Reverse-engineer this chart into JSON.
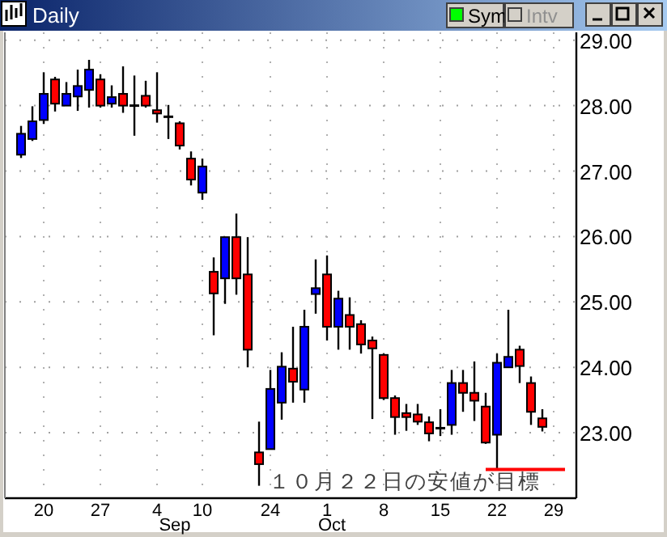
{
  "chart_data": {
    "type": "candlestick",
    "title": "Daily",
    "categories": [
      null,
      null,
      "20",
      null,
      null,
      null,
      null,
      "27",
      null,
      null,
      null,
      null,
      "4",
      null,
      null,
      null,
      "10",
      null,
      null,
      null,
      null,
      null,
      "24",
      null,
      null,
      null,
      null,
      "1",
      null,
      null,
      null,
      null,
      "8",
      null,
      null,
      null,
      null,
      "15",
      null,
      null,
      null,
      null,
      "22",
      null,
      null,
      null,
      null,
      "29",
      null
    ],
    "ohlc": [
      [
        27.25,
        27.69,
        27.2,
        27.57
      ],
      [
        27.49,
        27.99,
        27.46,
        27.76
      ],
      [
        27.78,
        28.51,
        27.72,
        28.18
      ],
      [
        28.4,
        28.44,
        27.91,
        28.03
      ],
      [
        28.0,
        28.36,
        28.0,
        28.18
      ],
      [
        28.14,
        28.55,
        27.92,
        28.3
      ],
      [
        28.24,
        28.7,
        27.97,
        28.55
      ],
      [
        28.4,
        28.48,
        27.97,
        28.0
      ],
      [
        28.03,
        28.31,
        27.97,
        28.13
      ],
      [
        28.18,
        28.6,
        27.89,
        28.0
      ],
      [
        28.0,
        28.46,
        27.54,
        28.0
      ],
      [
        28.15,
        28.38,
        27.97,
        28.0
      ],
      [
        27.93,
        28.51,
        27.74,
        27.88
      ],
      [
        27.83,
        28.01,
        27.49,
        27.83
      ],
      [
        27.73,
        27.76,
        27.33,
        27.39
      ],
      [
        27.19,
        27.3,
        26.78,
        26.87
      ],
      [
        26.67,
        27.19,
        26.56,
        27.07
      ],
      [
        25.46,
        25.68,
        24.49,
        25.13
      ],
      [
        25.36,
        25.99,
        24.97,
        25.99
      ],
      [
        25.99,
        26.35,
        25.11,
        25.36
      ],
      [
        25.42,
        25.99,
        24.0,
        24.27
      ],
      [
        22.7,
        23.17,
        22.19,
        22.52
      ],
      [
        22.75,
        23.96,
        22.75,
        23.67
      ],
      [
        23.46,
        24.23,
        23.2,
        24.01
      ],
      [
        23.98,
        24.62,
        23.46,
        23.78
      ],
      [
        23.66,
        24.88,
        23.46,
        24.62
      ],
      [
        25.12,
        25.65,
        24.82,
        25.21
      ],
      [
        25.42,
        25.71,
        24.41,
        24.62
      ],
      [
        24.62,
        25.17,
        24.27,
        25.05
      ],
      [
        24.8,
        25.07,
        24.27,
        24.62
      ],
      [
        24.66,
        24.72,
        24.21,
        24.35
      ],
      [
        24.41,
        24.47,
        23.21,
        24.29
      ],
      [
        24.19,
        24.21,
        23.5,
        23.53
      ],
      [
        23.53,
        23.57,
        22.97,
        23.24
      ],
      [
        23.3,
        23.44,
        23.03,
        23.24
      ],
      [
        23.28,
        23.44,
        23.12,
        23.17
      ],
      [
        23.16,
        23.25,
        22.87,
        22.99
      ],
      [
        23.07,
        23.36,
        22.95,
        23.07
      ],
      [
        23.12,
        23.96,
        22.97,
        23.76
      ],
      [
        23.76,
        23.96,
        23.32,
        23.61
      ],
      [
        23.61,
        24.09,
        23.18,
        23.49
      ],
      [
        23.4,
        23.61,
        22.83,
        22.85
      ],
      [
        22.97,
        24.21,
        22.44,
        24.07
      ],
      [
        24.0,
        24.88,
        24.0,
        24.16
      ],
      [
        24.27,
        24.33,
        23.76,
        24.02
      ],
      [
        23.76,
        23.86,
        23.12,
        23.32
      ],
      [
        23.22,
        23.36,
        23.02,
        23.09
      ],
      null,
      null
    ],
    "colors": [
      "#0000ff",
      "#0000ff",
      "#0000ff",
      "#ff0000",
      "#0000ff",
      "#0000ff",
      "#0000ff",
      "#ff0000",
      "#0000ff",
      "#ff0000",
      "#000000",
      "#ff0000",
      "#ff0000",
      "#000000",
      "#ff0000",
      "#ff0000",
      "#0000ff",
      "#ff0000",
      "#0000ff",
      "#ff0000",
      "#ff0000",
      "#ff0000",
      "#0000ff",
      "#0000ff",
      "#ff0000",
      "#0000ff",
      "#0000ff",
      "#ff0000",
      "#0000ff",
      "#ff0000",
      "#ff0000",
      "#ff0000",
      "#ff0000",
      "#ff0000",
      "#ff0000",
      "#ff0000",
      "#ff0000",
      "#000000",
      "#0000ff",
      "#ff0000",
      "#ff0000",
      "#ff0000",
      "#0000ff",
      "#0000ff",
      "#ff0000",
      "#ff0000",
      "#ff0000",
      null,
      null
    ],
    "series": [
      {
        "type": "line",
        "color": "#ff0000",
        "values": [
          null,
          null,
          null,
          null,
          null,
          null,
          null,
          null,
          null,
          null,
          null,
          null,
          null,
          null,
          null,
          null,
          null,
          null,
          null,
          null,
          null,
          null,
          null,
          null,
          null,
          null,
          null,
          null,
          null,
          null,
          null,
          null,
          null,
          null,
          null,
          null,
          null,
          null,
          null,
          null,
          null,
          22.44,
          22.44,
          22.44,
          22.44,
          22.44,
          22.44,
          22.44,
          22.44
        ]
      }
    ],
    "ylim": [
      22.0,
      29.12
    ],
    "yticks": [
      {
        "value": 23,
        "label": "23.00"
      },
      {
        "value": 24,
        "label": "24.00"
      },
      {
        "value": 25,
        "label": "25.00"
      },
      {
        "value": 26,
        "label": "26.00"
      },
      {
        "value": 27,
        "label": "27.00"
      },
      {
        "value": 28,
        "label": "28.00"
      },
      {
        "value": 29,
        "label": "29.00"
      }
    ],
    "grid": true,
    "annotations": [
      "１０月２２日の安値が目標",
      "Sep",
      "Oct",
      "Sym",
      "Intv"
    ]
  }
}
